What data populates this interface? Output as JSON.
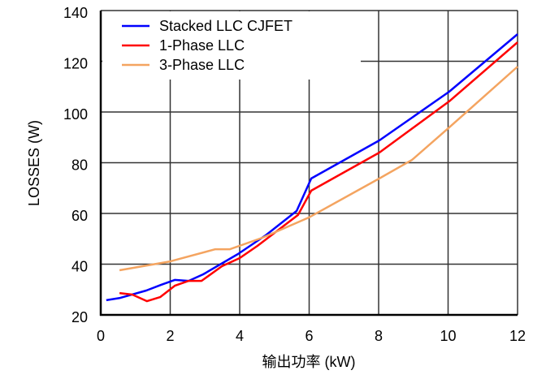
{
  "chart_data": {
    "type": "line",
    "xlabel": "输出功率 (kW)",
    "ylabel": "LOSSES (W)",
    "xlim": [
      0,
      12
    ],
    "ylim": [
      20,
      140
    ],
    "xticks": [
      "0",
      "2",
      "4",
      "6",
      "8",
      "10",
      "12"
    ],
    "yticks": [
      "20",
      "40",
      "60",
      "80",
      "100",
      "120",
      "140"
    ],
    "grid": true,
    "legend_position": "top-left",
    "series": [
      {
        "name": "Stacked LLC CJFET",
        "color": "#0000ff",
        "x": [
          0.16,
          0.56,
          1.31,
          1.73,
          2.13,
          2.53,
          2.95,
          3.95,
          4.75,
          5.64,
          6.06,
          8.02,
          10.03,
          12.0
        ],
        "y": [
          25.8,
          26.7,
          29.6,
          31.8,
          33.8,
          33.4,
          36.0,
          44.0,
          51.4,
          61.0,
          73.8,
          88.8,
          108.0,
          130.7
        ]
      },
      {
        "name": "1-Phase LLC",
        "color": "#ff0000",
        "x": [
          0.54,
          0.91,
          1.33,
          1.71,
          2.13,
          2.53,
          2.9,
          3.49,
          4.0,
          4.51,
          5.68,
          6.06,
          8.02,
          10.03,
          12.0
        ],
        "y": [
          28.6,
          28.0,
          25.4,
          27.0,
          31.5,
          33.4,
          33.4,
          39.2,
          42.4,
          47.2,
          59.4,
          69.0,
          84.0,
          104.2,
          127.5
        ]
      },
      {
        "name": "3-Phase LLC",
        "color": "#f4a460",
        "x": [
          0.54,
          2.0,
          3.3,
          3.72,
          4.65,
          5.99,
          8.02,
          8.96,
          10.03,
          12.0
        ],
        "y": [
          37.6,
          41.1,
          45.9,
          45.9,
          50.4,
          58.4,
          73.8,
          81.1,
          93.9,
          117.9
        ]
      }
    ]
  }
}
